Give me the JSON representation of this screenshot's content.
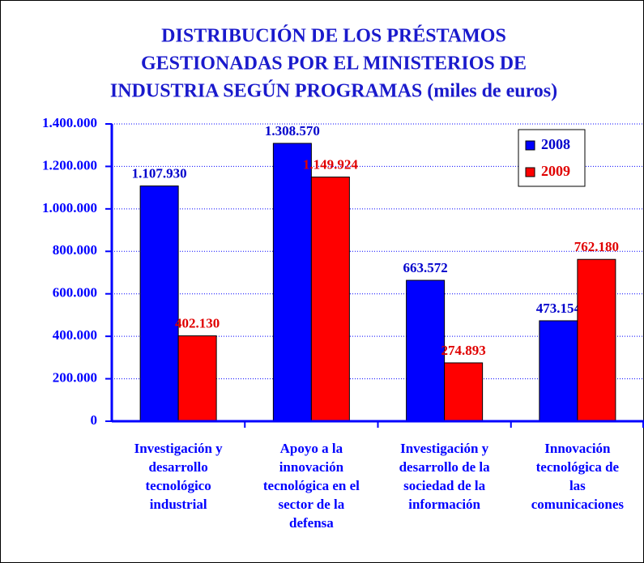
{
  "chart_data": {
    "type": "bar",
    "title": [
      "DISTRIBUCIÓN DE LOS PRÉSTAMOS",
      "GESTIONADAS POR EL MINISTERIOS DE",
      "INDUSTRIA SEGÚN PROGRAMAS (miles de euros)"
    ],
    "categories": [
      [
        "Investigación y",
        "desarrollo",
        "tecnológico",
        "industrial"
      ],
      [
        "Apoyo a la",
        "innovación",
        "tecnológica en el",
        "sector de la",
        "defensa"
      ],
      [
        "Investigación y",
        "desarrollo de la",
        "sociedad de la",
        "información"
      ],
      [
        "Innovación",
        "tecnológica de",
        "las",
        "comunicaciones"
      ]
    ],
    "series": [
      {
        "name": "2008",
        "color": "#0000ff",
        "label_color": "#0000cc",
        "values": [
          1107930,
          1308570,
          663572,
          473154
        ],
        "value_labels": [
          "1.107.930",
          "1.308.570",
          "663.572",
          "473.154"
        ]
      },
      {
        "name": "2009",
        "color": "#ff0000",
        "label_color": "#e00000",
        "values": [
          402130,
          1149924,
          274893,
          762180
        ],
        "value_labels": [
          "402.130",
          "1.149.924",
          "274.893",
          "762.180"
        ]
      }
    ],
    "ylim": [
      0,
      1400000
    ],
    "yticks": [
      0,
      {
        "value": 200000,
        "label": "200.000"
      },
      {
        "value": 400000,
        "label": "400.000"
      },
      {
        "value": 600000,
        "label": "600.000"
      },
      {
        "value": 800000,
        "label": "800.000"
      },
      {
        "value": 1000000,
        "label": "1.000.000"
      },
      {
        "value": 1200000,
        "label": "1.200.000"
      },
      {
        "value": 1400000,
        "label": "1.400.000"
      }
    ],
    "grid": true,
    "legend": "top-right",
    "axis_color": "#0000ff",
    "title_color": "#1a1acc"
  }
}
